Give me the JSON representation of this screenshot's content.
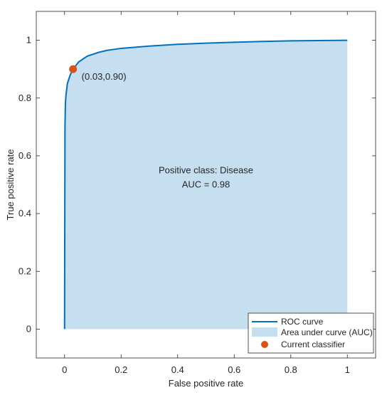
{
  "chart_data": {
    "type": "area",
    "title": "",
    "xlabel": "False positive rate",
    "ylabel": "True positive rate",
    "xlim": [
      -0.1,
      1.1
    ],
    "ylim": [
      -0.1,
      1.1
    ],
    "x_ticks": [
      0,
      0.2,
      0.4,
      0.6,
      0.8,
      1
    ],
    "y_ticks": [
      0,
      0.2,
      0.4,
      0.6,
      0.8,
      1
    ],
    "x_tick_labels": [
      "0",
      "0.2",
      "0.4",
      "0.6",
      "0.8",
      "1"
    ],
    "y_tick_labels": [
      "0",
      "0.2",
      "0.4",
      "0.6",
      "0.8",
      "1"
    ],
    "grid": false,
    "legend_position": "bottom-right",
    "series": [
      {
        "name": "ROC curve",
        "kind": "line",
        "color": "#0072BD",
        "x": [
          0,
          0.0015,
          0.003,
          0.005,
          0.01,
          0.02,
          0.03,
          0.05,
          0.08,
          0.12,
          0.15,
          0.2,
          0.3,
          0.4,
          0.5,
          0.6,
          0.7,
          0.8,
          0.9,
          1.0
        ],
        "y": [
          0,
          0.7,
          0.78,
          0.81,
          0.85,
          0.88,
          0.9,
          0.925,
          0.945,
          0.958,
          0.965,
          0.972,
          0.98,
          0.986,
          0.99,
          0.993,
          0.996,
          0.998,
          0.999,
          1.0
        ]
      },
      {
        "name": "Area under curve (AUC)",
        "kind": "area",
        "color": "#C6DFF0"
      },
      {
        "name": "Current classifier",
        "kind": "point",
        "color": "#D95319",
        "x": [
          0.03
        ],
        "y": [
          0.9
        ]
      }
    ],
    "annotations": {
      "point_label": "(0.03,0.90)",
      "center_line_1": "Positive class: Disease",
      "center_line_2": "AUC = 0.98"
    }
  }
}
